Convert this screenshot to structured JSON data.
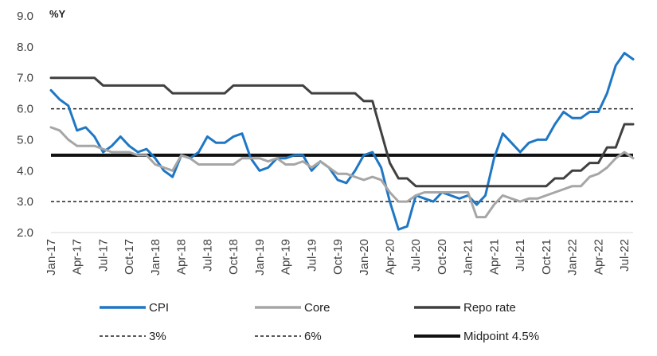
{
  "chart_data": {
    "type": "line",
    "unit_label": "%Y",
    "ylim": [
      2.0,
      9.0
    ],
    "yticks": [
      "2.0",
      "3.0",
      "4.0",
      "5.0",
      "6.0",
      "7.0",
      "8.0",
      "9.0"
    ],
    "xtick_labels": [
      "Jan-17",
      "Apr-17",
      "Jul-17",
      "Oct-17",
      "Jan-18",
      "Apr-18",
      "Jul-18",
      "Oct-18",
      "Jan-19",
      "Apr-19",
      "Jul-19",
      "Oct-19",
      "Jan-20",
      "Apr-20",
      "Jul-20",
      "Oct-20",
      "Jan-21",
      "Apr-21",
      "Jul-21",
      "Oct-21",
      "Jan-22",
      "Apr-22",
      "Jul-22"
    ],
    "grid": false,
    "legend_position": "bottom",
    "series": [
      {
        "name": "CPI",
        "color": "#1f77c4",
        "style": "solid",
        "values": [
          6.6,
          6.3,
          6.1,
          5.3,
          5.4,
          5.1,
          4.6,
          4.8,
          5.1,
          4.8,
          4.6,
          4.7,
          4.4,
          4.0,
          3.8,
          4.5,
          4.4,
          4.6,
          5.1,
          4.9,
          4.9,
          5.1,
          5.2,
          4.4,
          4.0,
          4.1,
          4.4,
          4.4,
          4.5,
          4.5,
          4.0,
          4.3,
          4.1,
          3.7,
          3.6,
          4.0,
          4.5,
          4.6,
          4.1,
          3.0,
          2.1,
          2.2,
          3.2,
          3.1,
          3.0,
          3.3,
          3.2,
          3.1,
          3.2,
          2.9,
          3.2,
          4.4,
          5.2,
          4.9,
          4.6,
          4.9,
          5.0,
          5.0,
          5.5,
          5.9,
          5.7,
          5.7,
          5.9,
          5.9,
          6.5,
          7.4,
          7.8,
          7.6
        ]
      },
      {
        "name": "Core",
        "color": "#a6a6a6",
        "style": "solid",
        "values": [
          5.4,
          5.3,
          5.0,
          4.8,
          4.8,
          4.8,
          4.7,
          4.6,
          4.6,
          4.6,
          4.5,
          4.5,
          4.2,
          4.1,
          4.0,
          4.5,
          4.4,
          4.2,
          4.2,
          4.2,
          4.2,
          4.2,
          4.4,
          4.4,
          4.4,
          4.3,
          4.4,
          4.2,
          4.2,
          4.3,
          4.1,
          4.3,
          4.1,
          3.9,
          3.9,
          3.8,
          3.7,
          3.8,
          3.7,
          3.3,
          3.0,
          3.0,
          3.2,
          3.3,
          3.3,
          3.3,
          3.3,
          3.3,
          3.3,
          2.5,
          2.5,
          2.9,
          3.2,
          3.1,
          3.0,
          3.1,
          3.1,
          3.2,
          3.3,
          3.4,
          3.5,
          3.5,
          3.8,
          3.9,
          4.1,
          4.4,
          4.6,
          4.4
        ]
      },
      {
        "name": "Repo rate",
        "color": "#404040",
        "style": "solid",
        "values": [
          7.0,
          7.0,
          7.0,
          7.0,
          7.0,
          7.0,
          6.75,
          6.75,
          6.75,
          6.75,
          6.75,
          6.75,
          6.75,
          6.75,
          6.5,
          6.5,
          6.5,
          6.5,
          6.5,
          6.5,
          6.5,
          6.75,
          6.75,
          6.75,
          6.75,
          6.75,
          6.75,
          6.75,
          6.75,
          6.75,
          6.5,
          6.5,
          6.5,
          6.5,
          6.5,
          6.5,
          6.25,
          6.25,
          5.25,
          4.25,
          3.75,
          3.75,
          3.5,
          3.5,
          3.5,
          3.5,
          3.5,
          3.5,
          3.5,
          3.5,
          3.5,
          3.5,
          3.5,
          3.5,
          3.5,
          3.5,
          3.5,
          3.5,
          3.75,
          3.75,
          4.0,
          4.0,
          4.25,
          4.25,
          4.75,
          4.75,
          5.5,
          5.5
        ]
      }
    ],
    "reference_lines": [
      {
        "name": "3%",
        "value": 3.0,
        "color": "#222222",
        "style": "dashed"
      },
      {
        "name": "6%",
        "value": 6.0,
        "color": "#222222",
        "style": "dashed"
      },
      {
        "name": "Midpoint 4.5%",
        "value": 4.5,
        "color": "#111111",
        "style": "solid-thick"
      }
    ],
    "legend": [
      {
        "label": "CPI",
        "color": "#1f77c4",
        "style": "solid"
      },
      {
        "label": "Core",
        "color": "#a6a6a6",
        "style": "solid"
      },
      {
        "label": "Repo rate",
        "color": "#404040",
        "style": "solid"
      },
      {
        "label": "3%",
        "color": "#222222",
        "style": "dashed"
      },
      {
        "label": "6%",
        "color": "#222222",
        "style": "dashed"
      },
      {
        "label": "Midpoint 4.5%",
        "color": "#111111",
        "style": "solid-thick"
      }
    ]
  }
}
